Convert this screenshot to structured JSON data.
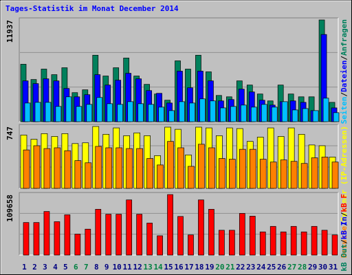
{
  "title": "Tages-Statistik im Monat December 2014",
  "legend_separator": "/",
  "chart_data": [
    {
      "type": "bar",
      "ylim": [
        0,
        11937
      ],
      "yticks": [
        11937
      ],
      "series": [
        {
          "name": "Anfragen",
          "color": "#00805c",
          "values": [
            6740,
            4950,
            6170,
            5520,
            6330,
            3410,
            3740,
            7800,
            5360,
            6330,
            7470,
            5360,
            4380,
            3250,
            2520,
            7140,
            6170,
            7800,
            5850,
            3080,
            2920,
            4790,
            4300,
            3250,
            2440,
            4300,
            3250,
            2920,
            2920,
            11937,
            2270
          ]
        },
        {
          "name": "Dateien",
          "color": "#0000ff",
          "values": [
            4790,
            4470,
            5030,
            4790,
            3900,
            2920,
            3170,
            5520,
            4300,
            4870,
            5680,
            5030,
            3650,
            3330,
            2190,
            5930,
            3980,
            5930,
            4790,
            2440,
            2600,
            3820,
            3490,
            2520,
            1950,
            2350,
            2440,
            2270,
            1300,
            10230,
            1620
          ]
        },
        {
          "name": "Seiten",
          "color": "#00c0ff",
          "values": [
            2190,
            2270,
            2270,
            1790,
            2920,
            1790,
            2030,
            2840,
            2110,
            2030,
            2350,
            2110,
            2030,
            1710,
            1300,
            2350,
            2190,
            2680,
            2440,
            1620,
            1790,
            1950,
            1710,
            2030,
            1710,
            2350,
            1380,
            1540,
            1300,
            2760,
            1060
          ]
        }
      ]
    },
    {
      "type": "bar",
      "ylim": [
        0,
        747
      ],
      "yticks": [
        747
      ],
      "series": [
        {
          "name": "Rechner (IP-Adressen)",
          "color": "#ffff00",
          "values": [
            644,
            593,
            661,
            627,
            661,
            541,
            550,
            747,
            653,
            730,
            636,
            670,
            636,
            395,
            739,
            713,
            404,
            739,
            730,
            636,
            730,
            722,
            567,
            619,
            730,
            627,
            730,
            653,
            524,
            515,
            378
          ]
        },
        {
          "name": "Besuche",
          "color": "#ff8000",
          "values": [
            464,
            515,
            481,
            490,
            455,
            335,
            309,
            507,
            490,
            490,
            481,
            481,
            361,
            283,
            567,
            490,
            266,
            533,
            490,
            361,
            352,
            472,
            472,
            352,
            318,
            344,
            326,
            301,
            369,
            378,
            318
          ]
        }
      ]
    },
    {
      "type": "bar",
      "ylim": [
        0,
        109658
      ],
      "yticks": [
        109658
      ],
      "categories": [
        "1",
        "2",
        "3",
        "4",
        "5",
        "6",
        "7",
        "8",
        "9",
        "10",
        "11",
        "12",
        "13",
        "14",
        "15",
        "16",
        "17",
        "18",
        "19",
        "20",
        "21",
        "22",
        "23",
        "24",
        "25",
        "26",
        "27",
        "28",
        "29",
        "30",
        "31"
      ],
      "category_colors": [
        "#000080",
        "#000080",
        "#000080",
        "#000080",
        "#000080",
        "#008040",
        "#008040",
        "#000080",
        "#000080",
        "#000080",
        "#000080",
        "#000080",
        "#008040",
        "#008040",
        "#000080",
        "#000080",
        "#000080",
        "#000080",
        "#000080",
        "#008040",
        "#008040",
        "#000080",
        "#000080",
        "#000080",
        "#000080",
        "#000080",
        "#008040",
        "#008040",
        "#000080",
        "#000080",
        "#000080"
      ],
      "series": [
        {
          "name": "kB F",
          "color": "#ff0000",
          "values": [
            59000,
            59000,
            79000,
            60500,
            73000,
            38000,
            47000,
            83000,
            74000,
            74000,
            100000,
            74000,
            58000,
            35000,
            109658,
            70000,
            36500,
            100000,
            83000,
            45000,
            45000,
            75500,
            70500,
            42000,
            52000,
            42000,
            52000,
            42000,
            52000,
            45000,
            36500
          ]
        }
      ],
      "legend_labels": [
        {
          "name": "kB In",
          "color": "#0000ff"
        },
        {
          "name": "kB Out",
          "color": "#00805c"
        }
      ]
    }
  ]
}
